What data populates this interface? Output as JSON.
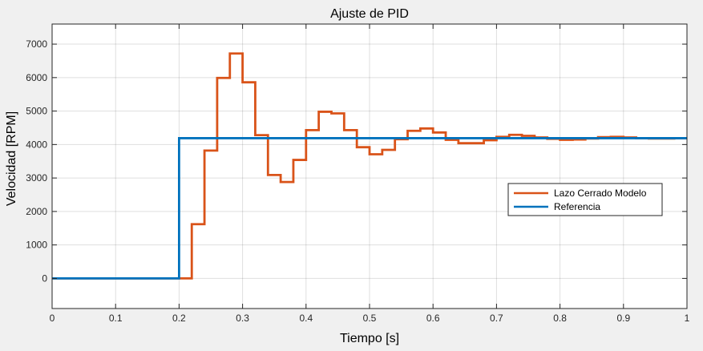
{
  "chart_data": {
    "type": "line",
    "title": "Ajuste de PID",
    "xlabel": "Tiempo [s]",
    "ylabel": "Velocidad [RPM]",
    "xlim": [
      0,
      1
    ],
    "ylim": [
      -900,
      7600
    ],
    "grid": true,
    "legend_position": "right",
    "xticks": [
      0,
      0.1,
      0.2,
      0.3,
      0.4,
      0.5,
      0.6,
      0.7,
      0.8,
      0.9,
      1
    ],
    "xtick_labels": [
      "0",
      "0.1",
      "0.2",
      "0.3",
      "0.4",
      "0.5",
      "0.6",
      "0.7",
      "0.8",
      "0.9",
      "1"
    ],
    "yticks": [
      0,
      1000,
      2000,
      3000,
      4000,
      5000,
      6000,
      7000
    ],
    "ytick_labels": [
      "0",
      "1000",
      "2000",
      "3000",
      "4000",
      "5000",
      "6000",
      "7000"
    ],
    "series": [
      {
        "name": "Lazo Cerrado Modelo",
        "color": "#d95319",
        "step": true,
        "x": [
          0.2,
          0.22,
          0.24,
          0.26,
          0.28,
          0.3,
          0.32,
          0.34,
          0.36,
          0.38,
          0.4,
          0.42,
          0.44,
          0.46,
          0.48,
          0.5,
          0.52,
          0.54,
          0.56,
          0.58,
          0.6,
          0.62,
          0.64,
          0.66,
          0.68,
          0.7,
          0.72,
          0.74,
          0.76,
          0.78,
          0.8,
          0.82,
          0.84,
          0.86,
          0.88,
          0.9,
          0.92,
          0.94,
          0.96,
          0.98
        ],
        "y": [
          0,
          1620,
          3820,
          5990,
          6720,
          5860,
          4280,
          3090,
          2880,
          3540,
          4430,
          4980,
          4930,
          4430,
          3920,
          3710,
          3840,
          4160,
          4410,
          4480,
          4360,
          4140,
          4040,
          4040,
          4130,
          4230,
          4290,
          4260,
          4210,
          4170,
          4140,
          4150,
          4180,
          4220,
          4230,
          4210,
          4190,
          4180,
          4180,
          4190
        ]
      },
      {
        "name": "Referencia",
        "color": "#0072bd",
        "step": true,
        "x": [
          0,
          0.2
        ],
        "y": [
          0,
          4190
        ]
      }
    ]
  }
}
